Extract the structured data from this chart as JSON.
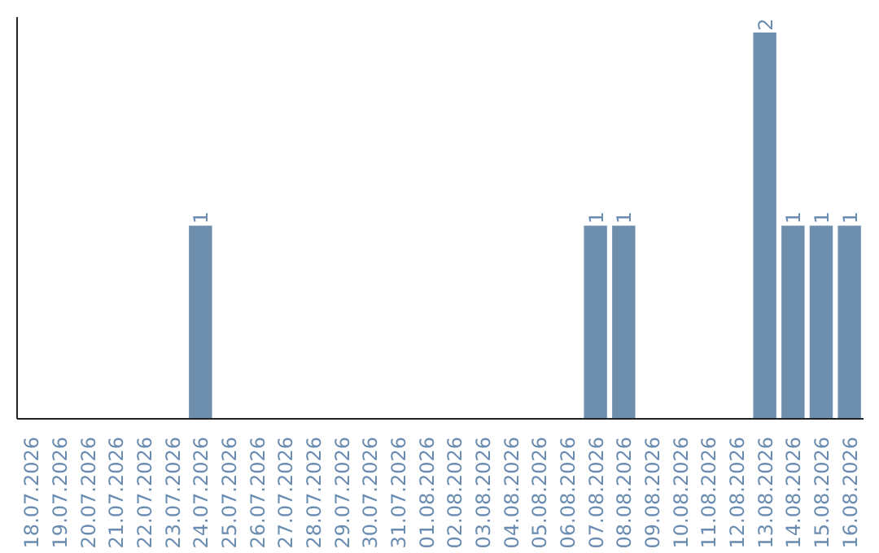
{
  "chart_data": {
    "type": "bar",
    "categories": [
      "18.07.2026",
      "19.07.2026",
      "20.07.2026",
      "21.07.2026",
      "22.07.2026",
      "23.07.2026",
      "24.07.2026",
      "25.07.2026",
      "26.07.2026",
      "27.07.2026",
      "28.07.2026",
      "29.07.2026",
      "30.07.2026",
      "31.07.2026",
      "01.08.2026",
      "02.08.2026",
      "03.08.2026",
      "04.08.2026",
      "05.08.2026",
      "06.08.2026",
      "07.08.2026",
      "08.08.2026",
      "09.08.2026",
      "10.08.2026",
      "11.08.2026",
      "12.08.2026",
      "13.08.2026",
      "14.08.2026",
      "15.08.2026",
      "16.08.2026"
    ],
    "values": [
      0,
      0,
      0,
      0,
      0,
      0,
      1,
      0,
      0,
      0,
      0,
      0,
      0,
      0,
      0,
      0,
      0,
      0,
      0,
      0,
      1,
      1,
      0,
      0,
      0,
      0,
      2,
      1,
      1,
      1
    ],
    "value_labels": [
      null,
      null,
      null,
      null,
      null,
      null,
      "1",
      null,
      null,
      null,
      null,
      null,
      null,
      null,
      null,
      null,
      null,
      null,
      null,
      null,
      "1",
      "1",
      null,
      null,
      null,
      null,
      "2",
      "1",
      "1",
      "1"
    ],
    "color": "#6d8fad",
    "tick_labels": "x",
    "grid": false
  }
}
